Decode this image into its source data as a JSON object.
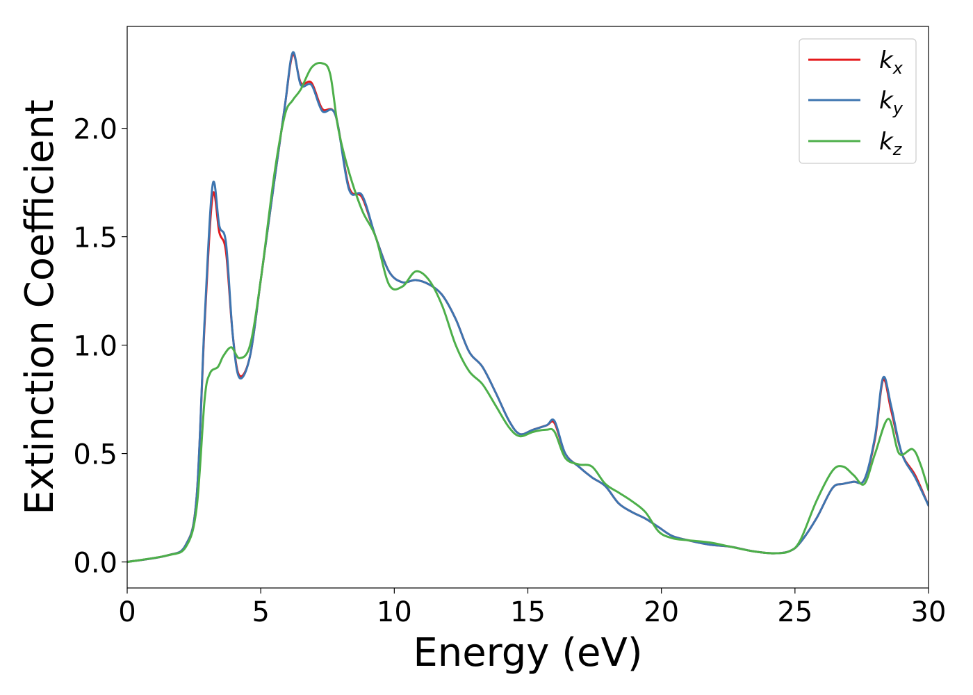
{
  "chart_data": {
    "type": "line",
    "xlabel": "Energy (eV)",
    "ylabel": "Extinction Coefficient",
    "xlim": [
      0,
      30
    ],
    "ylim": [
      -0.12,
      2.47
    ],
    "xticks": [
      0,
      5,
      10,
      15,
      20,
      25,
      30
    ],
    "xtick_labels": [
      "0",
      "5",
      "10",
      "15",
      "20",
      "25",
      "30"
    ],
    "yticks": [
      0.0,
      0.5,
      1.0,
      1.5,
      2.0
    ],
    "ytick_labels": [
      "0.0",
      "0.5",
      "1.0",
      "1.5",
      "2.0"
    ],
    "grid": false,
    "legend_position": "top-right",
    "series": [
      {
        "name": "k_x",
        "label_base": "k",
        "label_sub": "x",
        "color": "#e41a1c",
        "x": [
          0,
          1.5,
          2.2,
          2.6,
          2.9,
          3.2,
          3.45,
          3.7,
          3.95,
          4.2,
          4.6,
          5.0,
          5.5,
          5.9,
          6.2,
          6.5,
          6.9,
          7.3,
          7.8,
          8.3,
          8.8,
          9.3,
          9.8,
          10.3,
          10.8,
          11.3,
          11.8,
          12.3,
          12.8,
          13.3,
          13.8,
          14.3,
          14.7,
          15.2,
          15.7,
          16.0,
          16.4,
          16.9,
          17.4,
          17.9,
          18.4,
          18.9,
          19.4,
          19.9,
          20.4,
          21.0,
          21.8,
          22.6,
          23.4,
          24.2,
          24.8,
          25.2,
          25.8,
          26.4,
          26.8,
          27.2,
          27.6,
          28.0,
          28.3,
          28.6,
          29.0,
          29.5,
          30.0
        ],
        "y": [
          0.0,
          0.03,
          0.08,
          0.3,
          1.1,
          1.69,
          1.52,
          1.43,
          1.05,
          0.86,
          0.95,
          1.3,
          1.75,
          2.1,
          2.34,
          2.21,
          2.21,
          2.09,
          2.06,
          1.73,
          1.68,
          1.5,
          1.34,
          1.29,
          1.3,
          1.28,
          1.23,
          1.12,
          0.97,
          0.9,
          0.78,
          0.65,
          0.59,
          0.61,
          0.63,
          0.64,
          0.5,
          0.44,
          0.39,
          0.35,
          0.27,
          0.23,
          0.2,
          0.16,
          0.12,
          0.1,
          0.08,
          0.07,
          0.05,
          0.04,
          0.05,
          0.09,
          0.2,
          0.34,
          0.36,
          0.37,
          0.38,
          0.57,
          0.84,
          0.7,
          0.5,
          0.4,
          0.26
        ]
      },
      {
        "name": "k_y",
        "label_base": "k",
        "label_sub": "y",
        "color": "#3d75b0",
        "x": [
          0,
          1.5,
          2.2,
          2.6,
          2.9,
          3.2,
          3.45,
          3.7,
          3.95,
          4.2,
          4.6,
          5.0,
          5.5,
          5.9,
          6.2,
          6.5,
          6.9,
          7.3,
          7.8,
          8.3,
          8.8,
          9.3,
          9.8,
          10.3,
          10.8,
          11.3,
          11.8,
          12.3,
          12.8,
          13.3,
          13.8,
          14.3,
          14.7,
          15.2,
          15.7,
          16.0,
          16.4,
          16.9,
          17.4,
          17.9,
          18.4,
          18.9,
          19.4,
          19.9,
          20.4,
          21.0,
          21.8,
          22.6,
          23.4,
          24.2,
          24.8,
          25.2,
          25.8,
          26.4,
          26.8,
          27.2,
          27.6,
          28.0,
          28.3,
          28.6,
          29.0,
          29.5,
          30.0
        ],
        "y": [
          0.0,
          0.03,
          0.08,
          0.3,
          1.12,
          1.74,
          1.55,
          1.47,
          1.05,
          0.85,
          0.95,
          1.3,
          1.75,
          2.1,
          2.35,
          2.2,
          2.2,
          2.08,
          2.06,
          1.72,
          1.69,
          1.5,
          1.34,
          1.29,
          1.3,
          1.28,
          1.23,
          1.12,
          0.97,
          0.9,
          0.78,
          0.65,
          0.59,
          0.61,
          0.63,
          0.65,
          0.5,
          0.44,
          0.39,
          0.35,
          0.27,
          0.23,
          0.2,
          0.16,
          0.12,
          0.1,
          0.08,
          0.07,
          0.05,
          0.04,
          0.05,
          0.09,
          0.2,
          0.34,
          0.36,
          0.37,
          0.38,
          0.58,
          0.85,
          0.72,
          0.5,
          0.39,
          0.26
        ]
      },
      {
        "name": "k_z",
        "label_base": "k",
        "label_sub": "z",
        "color": "#4daf4a",
        "x": [
          0,
          1.5,
          2.2,
          2.6,
          2.9,
          3.1,
          3.4,
          3.6,
          3.9,
          4.2,
          4.6,
          5.0,
          5.5,
          5.9,
          6.2,
          6.5,
          6.9,
          7.3,
          7.6,
          7.9,
          8.3,
          8.8,
          9.3,
          9.8,
          10.3,
          10.8,
          11.3,
          11.8,
          12.3,
          12.8,
          13.3,
          13.8,
          14.3,
          14.7,
          15.2,
          15.7,
          16.0,
          16.4,
          16.9,
          17.4,
          17.9,
          18.4,
          18.9,
          19.4,
          19.9,
          20.4,
          21.0,
          21.8,
          22.6,
          23.4,
          24.2,
          24.8,
          25.2,
          25.8,
          26.4,
          26.8,
          27.2,
          27.6,
          28.0,
          28.5,
          28.9,
          29.4,
          29.7,
          30.0
        ],
        "y": [
          0.0,
          0.03,
          0.07,
          0.25,
          0.75,
          0.87,
          0.9,
          0.95,
          0.99,
          0.94,
          1.0,
          1.3,
          1.78,
          2.06,
          2.13,
          2.18,
          2.28,
          2.3,
          2.25,
          2.0,
          1.8,
          1.62,
          1.5,
          1.28,
          1.27,
          1.34,
          1.3,
          1.18,
          1.0,
          0.88,
          0.82,
          0.72,
          0.62,
          0.58,
          0.6,
          0.61,
          0.6,
          0.48,
          0.45,
          0.44,
          0.36,
          0.32,
          0.28,
          0.23,
          0.14,
          0.11,
          0.1,
          0.09,
          0.07,
          0.05,
          0.04,
          0.05,
          0.1,
          0.28,
          0.42,
          0.44,
          0.4,
          0.36,
          0.5,
          0.66,
          0.5,
          0.52,
          0.45,
          0.33
        ]
      }
    ]
  }
}
